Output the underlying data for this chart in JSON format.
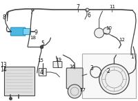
{
  "bg_color": "#ffffff",
  "line_color": "#444444",
  "light_line": "#666666",
  "blue1": "#4ab8e0",
  "blue2": "#7dd4f0",
  "gray_fill": "#e0e0e0",
  "light_gray": "#f0f0f0",
  "box_edge": "#aaaaaa",
  "label_color": "#111111",
  "figsize": [
    2.0,
    1.47
  ],
  "dpi": 100
}
